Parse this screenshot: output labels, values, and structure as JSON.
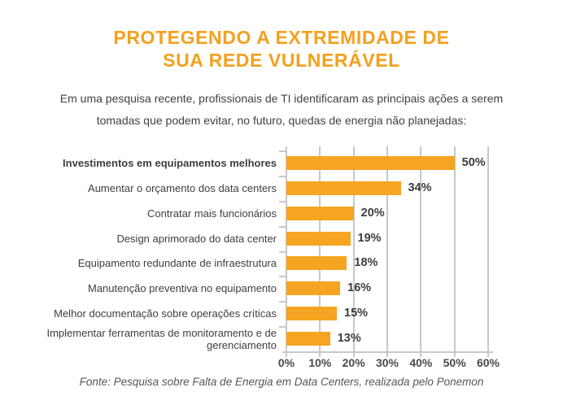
{
  "page": {
    "title_line1": "PROTEGENDO A EXTREMIDADE DE",
    "title_line2": "SUA REDE VULNERÁVEL",
    "subtitle": "Em uma pesquisa recente, profissionais de TI identificaram as principais ações a serem tomadas que podem evitar, no futuro,  quedas de energia não planejadas:",
    "source_note": "Fonte: Pesquisa sobre Falta de Energia em Data Centers, realizada pelo Ponemon"
  },
  "colors": {
    "title_orange": "#F5A01E",
    "bar_orange": "#F5A522",
    "gridline_gray": "#C8C8C8",
    "text_dark": "#3E3E3E"
  },
  "chart_data": {
    "type": "bar",
    "orientation": "horizontal",
    "title": "PROTEGENDO A EXTREMIDADE DE SUA REDE VULNERÁVEL",
    "categories": [
      "Investimentos em equipamentos melhores",
      "Aumentar o orçamento dos data centers",
      "Contratar mais funcionários",
      "Design aprimorado do data center",
      "Equipamento redundante de infraestrutura",
      "Manutenção preventiva no equipamento",
      "Melhor documentação sobre operações críticas",
      "Implementar ferramentas de monitoramento e de gerenciamento"
    ],
    "values": [
      50,
      34,
      20,
      19,
      18,
      16,
      15,
      13
    ],
    "value_labels": [
      "50%",
      "34%",
      "20%",
      "19%",
      "18%",
      "16%",
      "15%",
      "13%"
    ],
    "emphasized_category_index": 0,
    "x_ticks": [
      "0%",
      "10%",
      "20%",
      "30%",
      "40%",
      "50%",
      "60%"
    ],
    "x_tick_values": [
      0,
      10,
      20,
      30,
      40,
      50,
      60
    ],
    "xlim": [
      0,
      60
    ],
    "grid": "vertical",
    "legend": "none",
    "bar_color": "#F5A522"
  }
}
